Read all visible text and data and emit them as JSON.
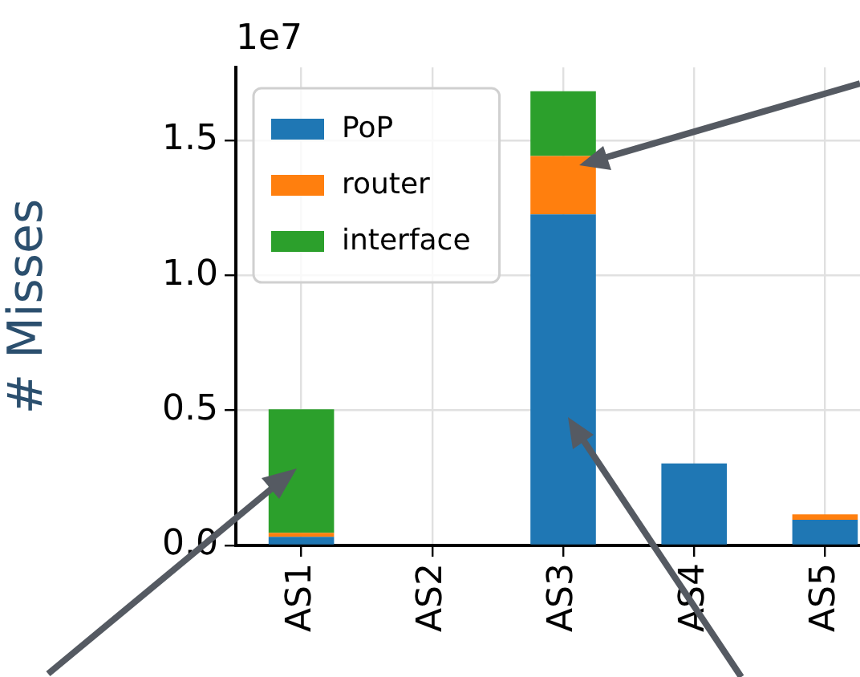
{
  "chart_data": {
    "type": "bar",
    "stacked": true,
    "ylabel": "# Misses",
    "categories": [
      "AS1",
      "AS2",
      "AS3",
      "AS4",
      "AS5"
    ],
    "series": [
      {
        "name": "PoP",
        "color": "#1f77b4",
        "values": [
          0.032,
          0,
          1.226,
          0.304,
          0.095
        ]
      },
      {
        "name": "router",
        "color": "#ff7f0e",
        "values": [
          0.015,
          0,
          0.216,
          0,
          0.02
        ]
      },
      {
        "name": "interface",
        "color": "#2ca02c",
        "values": [
          0.457,
          0,
          0.24,
          0,
          0
        ]
      }
    ],
    "ylim": [
      0,
      1.77
    ],
    "yticks": [
      {
        "value": 0,
        "label": "0.0"
      },
      0.5,
      {
        "value": 1,
        "label": "1.0"
      },
      1.5
    ],
    "annotations": [
      "1e7"
    ],
    "grid": true,
    "legend": "top left"
  }
}
